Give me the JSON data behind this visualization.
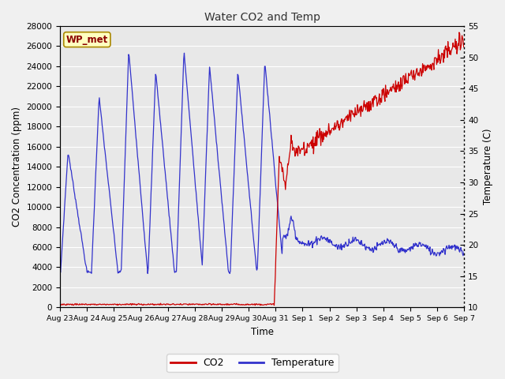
{
  "title": "Water CO2 and Temp",
  "xlabel": "Time",
  "ylabel_left": "CO2 Concentration (ppm)",
  "ylabel_right": "Temperature (C)",
  "annotation": "WP_met",
  "fig_bg_color": "#f0f0f0",
  "plot_bg_color": "#e8e8e8",
  "co2_color": "#cc0000",
  "temp_color": "#3333cc",
  "ylim_left": [
    0,
    28000
  ],
  "ylim_right": [
    10,
    55
  ],
  "yticks_left": [
    0,
    2000,
    4000,
    6000,
    8000,
    10000,
    12000,
    14000,
    16000,
    18000,
    20000,
    22000,
    24000,
    26000,
    28000
  ],
  "yticks_right": [
    10,
    15,
    20,
    25,
    30,
    35,
    40,
    45,
    50,
    55
  ],
  "tick_labels": [
    "Aug 23",
    "Aug 24",
    "Aug 25",
    "Aug 26",
    "Aug 27",
    "Aug 28",
    "Aug 29",
    "Aug 30",
    "Aug 31",
    "Sep 1",
    "Sep 2",
    "Sep 3",
    "Sep 4",
    "Sep 5",
    "Sep 6",
    "Sep 7"
  ],
  "legend_co2": "CO2",
  "legend_temp": "Temperature"
}
